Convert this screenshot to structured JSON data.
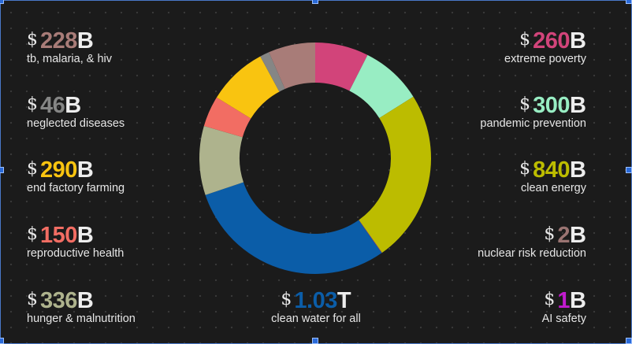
{
  "chart_data": {
    "type": "pie",
    "variant": "donut",
    "currency_symbol": "$",
    "items": [
      {
        "id": "extreme-poverty",
        "amount": "260",
        "unit": "B",
        "value": 260,
        "label": "extreme poverty",
        "color": "#d2447a",
        "side": "right"
      },
      {
        "id": "pandemic-prevention",
        "amount": "300",
        "unit": "B",
        "value": 300,
        "label": "pandemic prevention",
        "color": "#98edc3",
        "side": "right"
      },
      {
        "id": "clean-energy",
        "amount": "840",
        "unit": "B",
        "value": 840,
        "label": "clean energy",
        "color": "#bcbc00",
        "side": "right"
      },
      {
        "id": "nuclear-risk-reduction",
        "amount": "2",
        "unit": "B",
        "value": 2,
        "label": "nuclear risk reduction",
        "color": "#9a7472",
        "side": "right"
      },
      {
        "id": "ai-safety",
        "amount": "1",
        "unit": "B",
        "value": 1,
        "label": "AI safety",
        "color": "#c21bd0",
        "side": "right"
      },
      {
        "id": "clean-water",
        "amount": "1.03",
        "unit": "T",
        "value": 1030,
        "label": "clean water for all",
        "color": "#0b5da8",
        "side": "center"
      },
      {
        "id": "hunger-malnutrition",
        "amount": "336",
        "unit": "B",
        "value": 336,
        "label": "hunger & malnutrition",
        "color": "#aeb38d",
        "side": "left"
      },
      {
        "id": "reproductive-health",
        "amount": "150",
        "unit": "B",
        "value": 150,
        "label": "reproductive health",
        "color": "#f26d63",
        "side": "left"
      },
      {
        "id": "end-factory-farming",
        "amount": "290",
        "unit": "B",
        "value": 290,
        "label": "end factory farming",
        "color": "#f9c410",
        "side": "left"
      },
      {
        "id": "neglected-diseases",
        "amount": "46",
        "unit": "B",
        "value": 46,
        "label": "neglected diseases",
        "color": "#858685",
        "side": "left"
      },
      {
        "id": "tb-malaria-hiv",
        "amount": "228",
        "unit": "B",
        "value": 228,
        "label": "tb, malaria, & hiv",
        "color": "#a87c78",
        "side": "left"
      }
    ]
  }
}
